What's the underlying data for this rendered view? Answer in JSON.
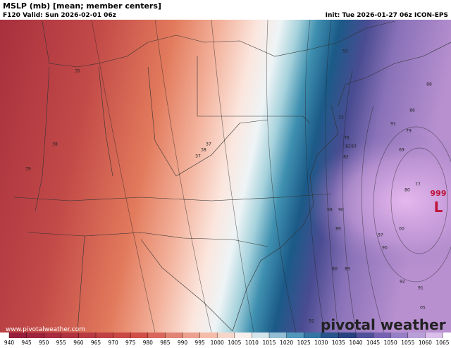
{
  "header": {
    "title": "MSLP (mb) [mean; member centers]",
    "valid": "F120 Valid: Sun 2026-02-01 06z",
    "init": "Init: Tue 2026-01-27 06z ICON-EPS"
  },
  "map": {
    "low_value": "999",
    "low_symbol": "L",
    "member_centers": [
      "35",
      "38",
      "39",
      "37",
      "38",
      "37",
      "33",
      "55",
      "88",
      "86",
      "91",
      "79",
      "69",
      "76",
      "82",
      "83",
      "82",
      "77",
      "80",
      "68",
      "90",
      "89",
      "97",
      "00",
      "90",
      "80",
      "89",
      "92",
      "91",
      "05",
      "92"
    ],
    "website": "www.pivotalweather.com",
    "brand": "pivotal weather"
  },
  "colorbar": {
    "ticks": [
      940,
      945,
      950,
      955,
      960,
      965,
      970,
      975,
      980,
      985,
      990,
      995,
      1000,
      1005,
      1010,
      1015,
      1020,
      1025,
      1030,
      1035,
      1040,
      1045,
      1050,
      1055,
      1060,
      1065
    ]
  }
}
